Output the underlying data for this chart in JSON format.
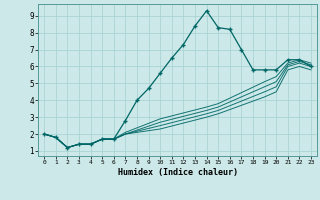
{
  "xlabel": "Humidex (Indice chaleur)",
  "background_color": "#cce8e8",
  "line_color": "#006666",
  "grid_color": "#aad4d4",
  "xlim": [
    -0.5,
    23.5
  ],
  "ylim": [
    0.7,
    9.7
  ],
  "xticks": [
    0,
    1,
    2,
    3,
    4,
    5,
    6,
    7,
    8,
    9,
    10,
    11,
    12,
    13,
    14,
    15,
    16,
    17,
    18,
    19,
    20,
    21,
    22,
    23
  ],
  "yticks": [
    1,
    2,
    3,
    4,
    5,
    6,
    7,
    8,
    9
  ],
  "main_line_x": [
    0,
    1,
    2,
    3,
    4,
    5,
    6,
    7,
    8,
    9,
    10,
    11,
    12,
    13,
    14,
    15,
    16,
    17,
    18,
    19,
    20,
    21,
    22,
    23
  ],
  "main_line_y": [
    2.0,
    1.8,
    1.2,
    1.4,
    1.4,
    1.7,
    1.7,
    2.8,
    4.0,
    4.7,
    5.6,
    6.5,
    7.3,
    8.4,
    9.3,
    8.3,
    8.2,
    7.0,
    5.8,
    5.8,
    5.8,
    6.4,
    6.4,
    6.0
  ],
  "extra_lines": [
    {
      "x": [
        0,
        1,
        2,
        3,
        4,
        5,
        6,
        7,
        10,
        14,
        15,
        19,
        20,
        21,
        22,
        23
      ],
      "y": [
        2.0,
        1.8,
        1.2,
        1.4,
        1.4,
        1.7,
        1.7,
        2.0,
        2.3,
        3.0,
        3.2,
        4.2,
        4.5,
        5.8,
        6.0,
        5.8
      ]
    },
    {
      "x": [
        0,
        1,
        2,
        3,
        4,
        5,
        6,
        7,
        10,
        14,
        15,
        19,
        20,
        21,
        22,
        23
      ],
      "y": [
        2.0,
        1.8,
        1.2,
        1.4,
        1.4,
        1.7,
        1.7,
        2.0,
        2.5,
        3.2,
        3.4,
        4.5,
        4.8,
        6.0,
        6.2,
        6.0
      ]
    },
    {
      "x": [
        0,
        1,
        2,
        3,
        4,
        5,
        6,
        7,
        10,
        14,
        15,
        19,
        20,
        21,
        22,
        23
      ],
      "y": [
        2.0,
        1.8,
        1.2,
        1.4,
        1.4,
        1.7,
        1.7,
        2.0,
        2.7,
        3.4,
        3.6,
        4.8,
        5.1,
        6.1,
        6.3,
        6.1
      ]
    },
    {
      "x": [
        0,
        1,
        2,
        3,
        4,
        5,
        6,
        7,
        10,
        14,
        15,
        19,
        20,
        21,
        22,
        23
      ],
      "y": [
        2.0,
        1.8,
        1.2,
        1.4,
        1.4,
        1.7,
        1.7,
        2.1,
        2.9,
        3.6,
        3.8,
        5.1,
        5.4,
        6.2,
        6.4,
        6.2
      ]
    }
  ]
}
